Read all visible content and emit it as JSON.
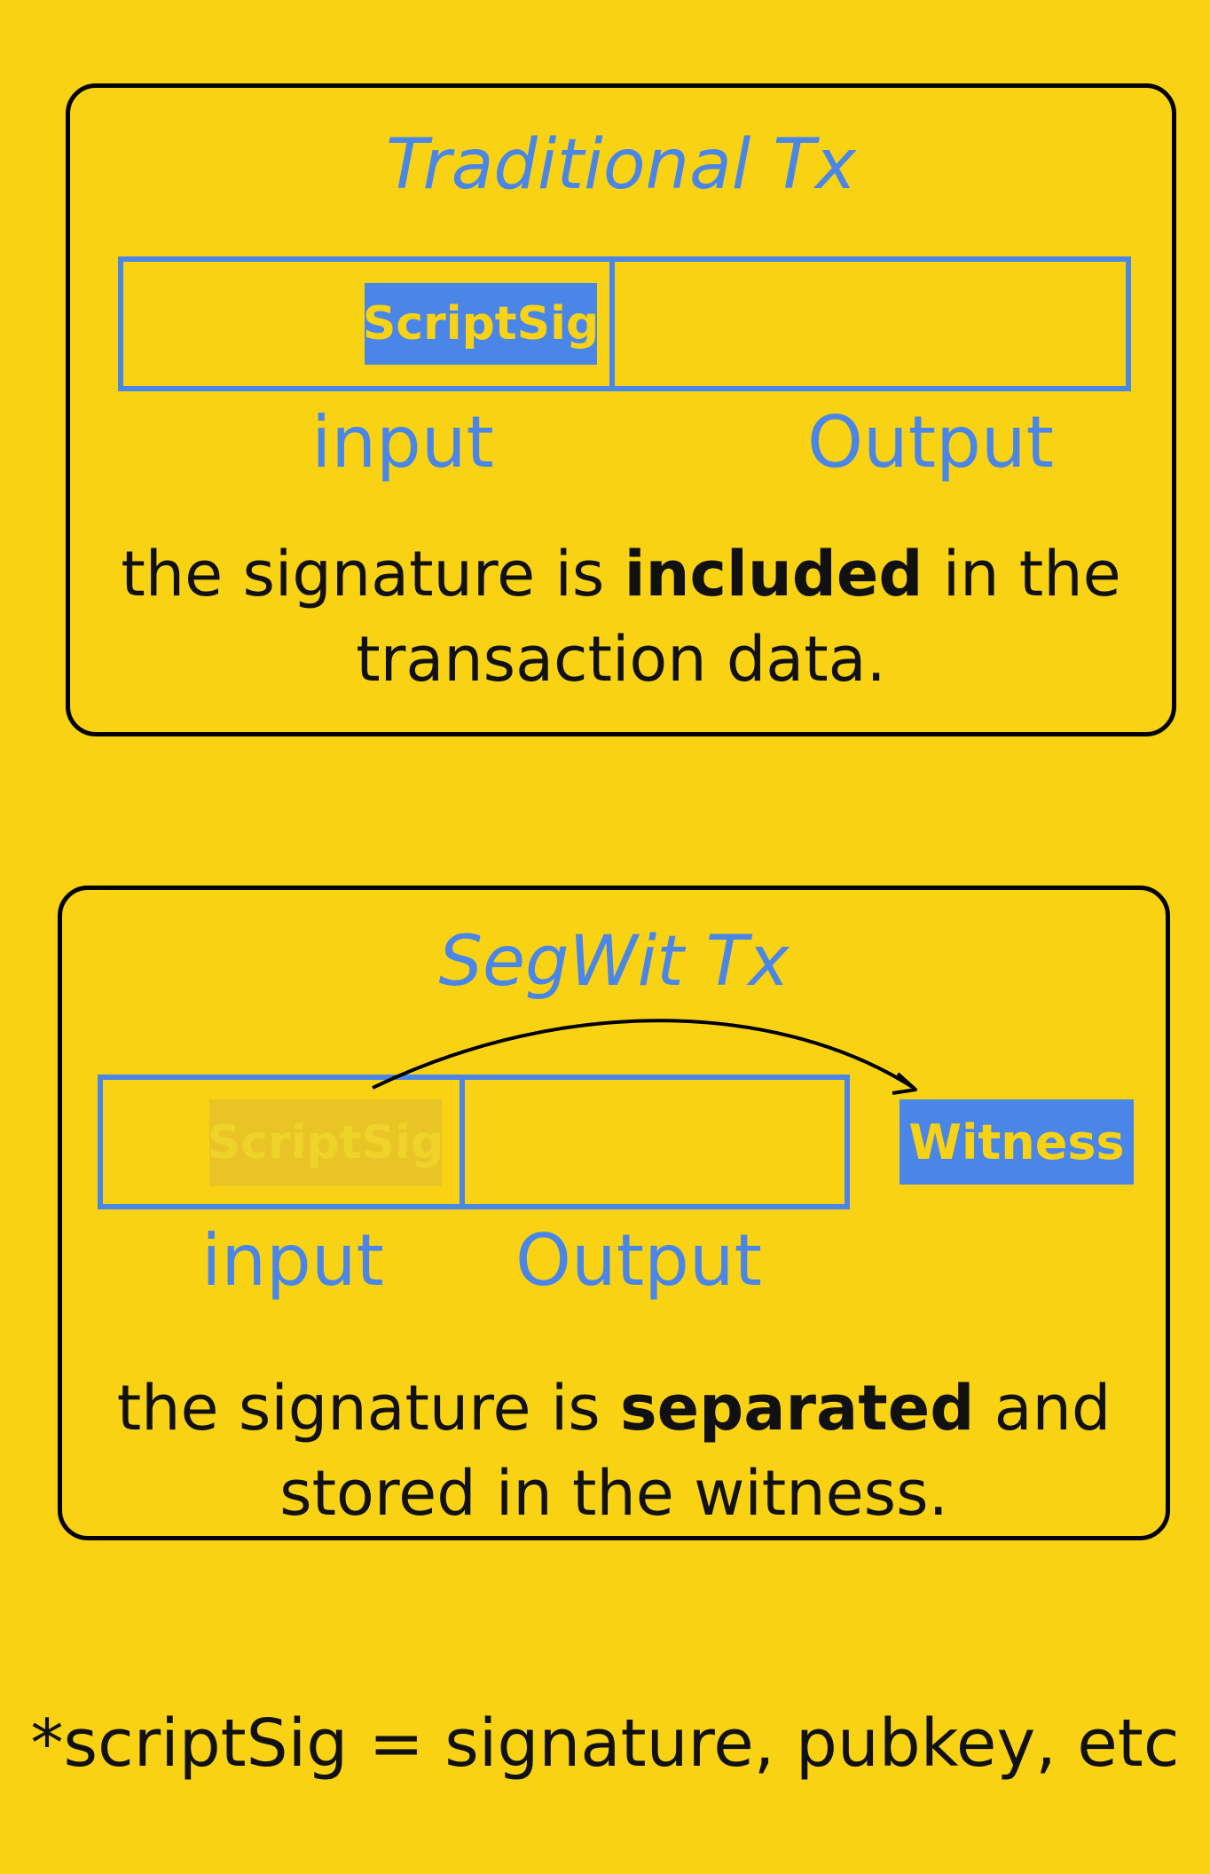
{
  "traditional": {
    "title": "Traditional Tx",
    "scriptsig_label": "ScriptSig",
    "input_label": "input",
    "output_label": "Output",
    "desc_pre": "the signature is ",
    "desc_bold": "included",
    "desc_post": " in the transaction data."
  },
  "segwit": {
    "title": "SegWit Tx",
    "scriptsig_label": "ScriptSig",
    "witness_label": "Witness",
    "input_label": "input",
    "output_label": "Output",
    "desc_pre": "the signature is ",
    "desc_bold": "separated",
    "desc_post": " and stored in the witness."
  },
  "footnote": "*scriptSig = signature, pubkey, etc",
  "colors": {
    "background": "#F9D313",
    "accent": "#4A86E8",
    "text": "#111111"
  }
}
